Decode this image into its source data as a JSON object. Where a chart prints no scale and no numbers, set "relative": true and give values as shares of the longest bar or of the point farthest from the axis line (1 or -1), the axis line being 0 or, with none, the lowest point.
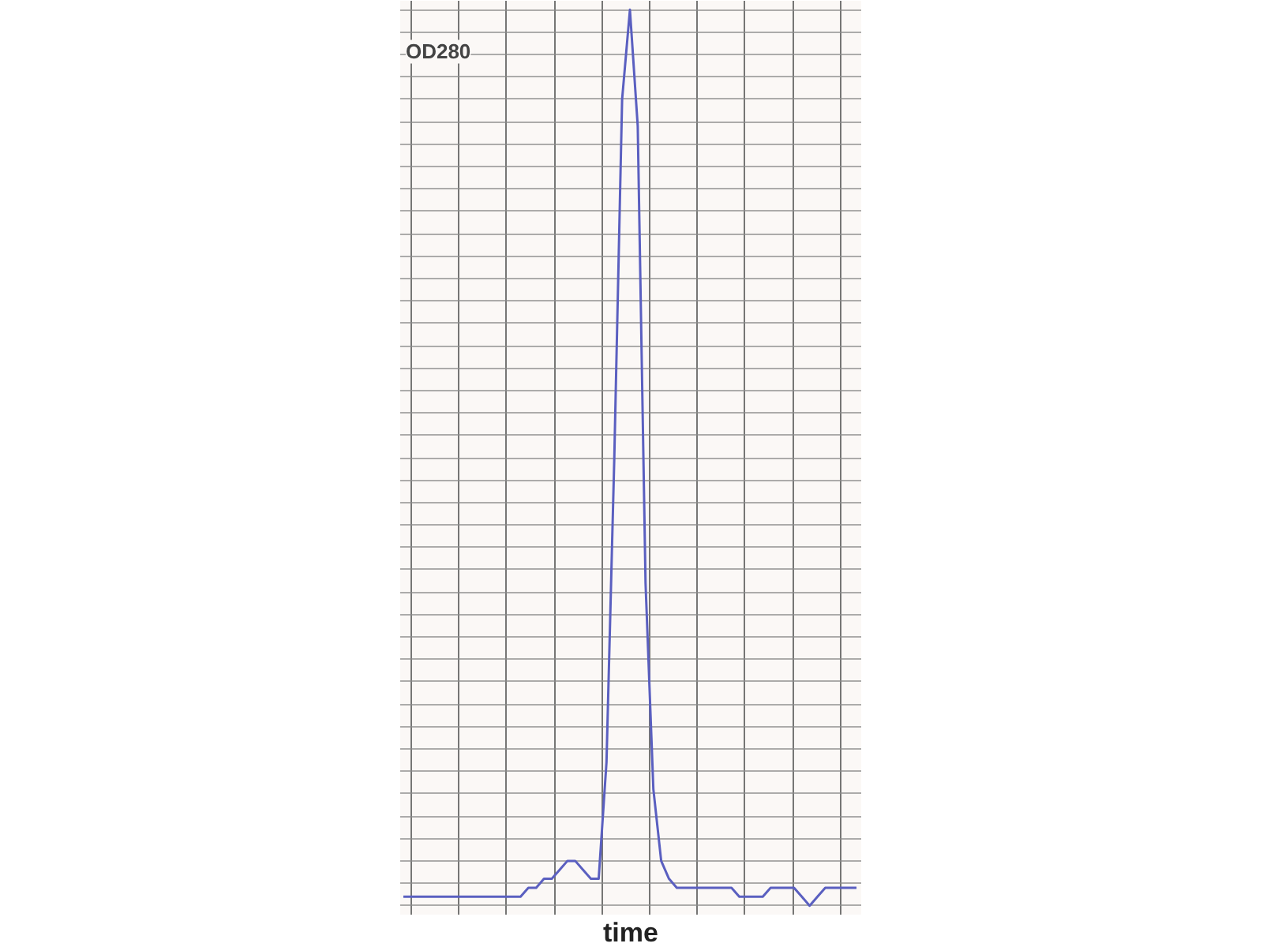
{
  "chart_data": {
    "type": "line",
    "relative": true,
    "ylabel": "OD280",
    "xlabel": "time",
    "color": "#5a5fc0",
    "grid": true,
    "categories": [
      null,
      null,
      null,
      null,
      null,
      null,
      null,
      null,
      null,
      null,
      null,
      null,
      null,
      null,
      null,
      null,
      null,
      null,
      null,
      null,
      null,
      null,
      null,
      null,
      null,
      null,
      null,
      null,
      null,
      null,
      null,
      null,
      null,
      null,
      null,
      null,
      null,
      null,
      null,
      null,
      null,
      null,
      null,
      null,
      null,
      null,
      null,
      null,
      null,
      null,
      null,
      null,
      null,
      null,
      null,
      null,
      null,
      null,
      null
    ],
    "values": [
      0.01,
      0.01,
      0.01,
      0.01,
      0.01,
      0.01,
      0.01,
      0.01,
      0.01,
      0.01,
      0.01,
      0.01,
      0.01,
      0.01,
      0.01,
      0.01,
      0.02,
      0.02,
      0.03,
      0.03,
      0.04,
      0.05,
      0.05,
      0.04,
      0.03,
      0.03,
      0.16,
      0.5,
      0.9,
      1,
      0.87,
      0.36,
      0.13,
      0.05,
      0.03,
      0.02,
      0.02,
      0.02,
      0.02,
      0.02,
      0.02,
      0.02,
      0.02,
      0.01,
      0.01,
      0.01,
      0.01,
      0.02,
      0.02,
      0.02,
      0.02,
      0.01,
      0,
      0.01,
      0.02,
      0.02,
      0.02,
      0.02,
      0.02
    ]
  }
}
